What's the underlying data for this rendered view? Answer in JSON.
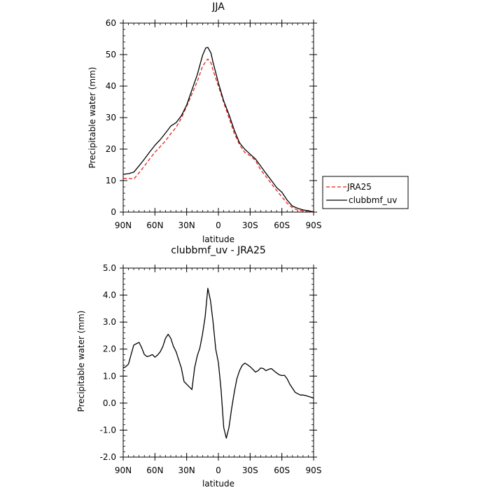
{
  "chart_data": [
    {
      "type": "line",
      "title": "JJA",
      "xlabel": "latitude",
      "ylabel": "Precipitable water (mm)",
      "xlim": [
        90,
        -90
      ],
      "ylim": [
        0,
        60
      ],
      "x_ticks": [
        {
          "value": 90,
          "label": "90N"
        },
        {
          "value": 60,
          "label": "60N"
        },
        {
          "value": 30,
          "label": "30N"
        },
        {
          "value": 0,
          "label": "0"
        },
        {
          "value": -30,
          "label": "30S"
        },
        {
          "value": -60,
          "label": "60S"
        },
        {
          "value": -90,
          "label": "90S"
        }
      ],
      "y_ticks": [
        {
          "value": 0,
          "label": "0"
        },
        {
          "value": 10,
          "label": "10"
        },
        {
          "value": 20,
          "label": "20"
        },
        {
          "value": 30,
          "label": "30"
        },
        {
          "value": 40,
          "label": "40"
        },
        {
          "value": 50,
          "label": "50"
        },
        {
          "value": 60,
          "label": "60"
        }
      ],
      "legend_position": "outside-right",
      "series": [
        {
          "name": "JRA25",
          "color": "#e8201a",
          "dash": "dashed",
          "x": [
            90,
            85,
            80,
            75,
            70,
            65,
            60,
            55,
            50,
            45,
            40,
            35,
            30,
            25,
            20,
            15,
            12,
            10,
            7,
            5,
            2.5,
            0,
            -5,
            -10,
            -15,
            -20,
            -25,
            -30,
            -35,
            -40,
            -45,
            -50,
            -55,
            -60,
            -65,
            -70,
            -75,
            -80,
            -85,
            -90
          ],
          "y": [
            10.7,
            10.7,
            10.5,
            12.5,
            14.6,
            16.9,
            19.0,
            20.8,
            22.6,
            24.9,
            26.9,
            29.8,
            33.6,
            37.5,
            41.5,
            46.2,
            47.8,
            48.6,
            47.4,
            45.0,
            42.5,
            40.0,
            34.8,
            29.9,
            25.0,
            21.4,
            18.9,
            17.9,
            16.4,
            13.4,
            11.3,
            9.0,
            6.9,
            4.8,
            2.8,
            1.4,
            0.6,
            0.4,
            0.1,
            0.0
          ]
        },
        {
          "name": "clubbmf_uv",
          "color": "#000000",
          "dash": "solid",
          "x": [
            90,
            85,
            80,
            75,
            70,
            65,
            60,
            55,
            50,
            45,
            40,
            35,
            30,
            25,
            20,
            15,
            12,
            10,
            7,
            5,
            2.5,
            0,
            -5,
            -10,
            -15,
            -20,
            -25,
            -30,
            -35,
            -40,
            -45,
            -50,
            -55,
            -60,
            -65,
            -70,
            -75,
            -80,
            -85,
            -90
          ],
          "y": [
            12.0,
            12.2,
            12.7,
            14.7,
            16.8,
            19.1,
            21.2,
            23.0,
            25.1,
            27.3,
            28.4,
            30.6,
            34.0,
            38.8,
            43.6,
            49.7,
            52.1,
            52.3,
            50.5,
            47.5,
            44.3,
            41.0,
            35.3,
            31.0,
            26.0,
            22.0,
            19.9,
            18.4,
            16.9,
            14.6,
            12.3,
            10.1,
            7.8,
            6.3,
            3.8,
            1.9,
            1.2,
            0.7,
            0.4,
            0.1
          ]
        }
      ]
    },
    {
      "type": "line",
      "title": "clubbmf_uv - JRA25",
      "xlabel": "latitude",
      "ylabel": "Precipitable water (mm)",
      "xlim": [
        90,
        -90
      ],
      "ylim": [
        -2,
        5
      ],
      "x_ticks": [
        {
          "value": 90,
          "label": "90N"
        },
        {
          "value": 60,
          "label": "60N"
        },
        {
          "value": 30,
          "label": "30N"
        },
        {
          "value": 0,
          "label": "0"
        },
        {
          "value": -30,
          "label": "30S"
        },
        {
          "value": -60,
          "label": "60S"
        },
        {
          "value": -90,
          "label": "90S"
        }
      ],
      "y_ticks": [
        {
          "value": -2,
          "label": "-2.0"
        },
        {
          "value": -1,
          "label": "-1.0"
        },
        {
          "value": 0,
          "label": "0.0"
        },
        {
          "value": 1,
          "label": "1.0"
        },
        {
          "value": 2,
          "label": "2.0"
        },
        {
          "value": 3,
          "label": "3.0"
        },
        {
          "value": 4,
          "label": "4.0"
        },
        {
          "value": 5,
          "label": "5.0"
        }
      ],
      "series": [
        {
          "color": "#000000",
          "dash": "solid",
          "x": [
            90,
            87.5,
            85,
            82.5,
            80,
            77.5,
            75,
            72.5,
            70,
            67.5,
            65,
            62.5,
            60,
            57.5,
            55,
            52.5,
            50,
            47.5,
            45,
            42.5,
            40,
            37.5,
            35,
            32.5,
            30,
            27.5,
            25,
            22.5,
            20,
            17.5,
            15,
            12.5,
            10,
            7.5,
            5,
            2.5,
            0,
            -2.5,
            -5,
            -7.5,
            -10,
            -12.5,
            -15,
            -17.5,
            -20,
            -22.5,
            -25,
            -27.5,
            -30,
            -32.5,
            -35,
            -37.5,
            -40,
            -42.5,
            -45,
            -47.5,
            -50,
            -52.5,
            -55,
            -57.5,
            -60,
            -62.5,
            -65,
            -67.5,
            -70,
            -72.5,
            -75,
            -77.5,
            -80,
            -82.5,
            -85,
            -87.5,
            -90
          ],
          "y": [
            1.3,
            1.35,
            1.45,
            1.8,
            2.15,
            2.2,
            2.25,
            2.05,
            1.8,
            1.72,
            1.75,
            1.8,
            1.7,
            1.78,
            1.9,
            2.1,
            2.4,
            2.55,
            2.4,
            2.1,
            1.9,
            1.6,
            1.3,
            0.8,
            0.7,
            0.6,
            0.5,
            1.3,
            1.75,
            2.05,
            2.55,
            3.2,
            4.25,
            3.8,
            3.0,
            2.0,
            1.5,
            0.5,
            -0.9,
            -1.3,
            -0.9,
            -0.2,
            0.4,
            0.9,
            1.2,
            1.4,
            1.48,
            1.42,
            1.35,
            1.25,
            1.15,
            1.2,
            1.3,
            1.28,
            1.2,
            1.25,
            1.28,
            1.2,
            1.12,
            1.05,
            1.02,
            1.03,
            0.9,
            0.7,
            0.55,
            0.4,
            0.35,
            0.3,
            0.3,
            0.28,
            0.25,
            0.22,
            0.18
          ]
        }
      ]
    }
  ]
}
